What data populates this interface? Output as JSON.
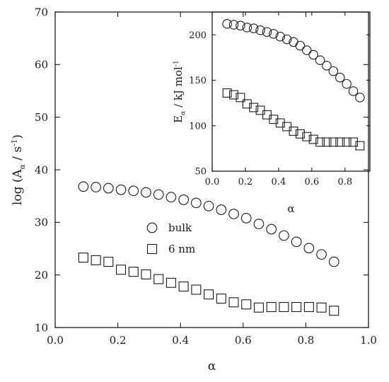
{
  "chart_data": [
    {
      "type": "scatter",
      "xlabel": "α",
      "ylabel": "log (A",
      "ylabel_sub": "α",
      "ylabel_tail": " / s",
      "ylabel_sup": "-1",
      "ylabel_close": ")",
      "xlim": [
        0.0,
        1.0
      ],
      "ylim": [
        10,
        70
      ],
      "x_ticks": [
        0.0,
        0.2,
        0.4,
        0.6,
        0.8,
        1.0
      ],
      "x_tick_labels": [
        "0.0",
        "0.2",
        "0.4",
        "0.6",
        "0.8",
        "1.0"
      ],
      "y_ticks": [
        10,
        20,
        30,
        40,
        50,
        60,
        70
      ],
      "y_tick_labels": [
        "10",
        "20",
        "30",
        "40",
        "50",
        "60",
        "70"
      ],
      "grid": false,
      "legend_position": "center",
      "series": [
        {
          "name": "bulk",
          "marker": "circle",
          "x": [
            0.09,
            0.13,
            0.17,
            0.21,
            0.25,
            0.29,
            0.33,
            0.37,
            0.41,
            0.45,
            0.49,
            0.53,
            0.57,
            0.61,
            0.65,
            0.69,
            0.73,
            0.77,
            0.81,
            0.85,
            0.89
          ],
          "y": [
            36.8,
            36.7,
            36.5,
            36.2,
            36.0,
            35.7,
            35.3,
            34.8,
            34.3,
            33.7,
            33.1,
            32.4,
            31.6,
            30.8,
            29.7,
            28.7,
            27.5,
            26.3,
            25.1,
            23.9,
            22.5
          ]
        },
        {
          "name": "6 nm",
          "marker": "square",
          "x": [
            0.09,
            0.13,
            0.17,
            0.21,
            0.25,
            0.29,
            0.33,
            0.37,
            0.41,
            0.45,
            0.49,
            0.53,
            0.57,
            0.61,
            0.65,
            0.69,
            0.73,
            0.77,
            0.81,
            0.85,
            0.89
          ],
          "y": [
            23.3,
            22.8,
            22.5,
            21.0,
            20.6,
            20.1,
            19.2,
            18.5,
            17.8,
            17.2,
            16.3,
            15.5,
            14.8,
            14.4,
            13.8,
            13.9,
            13.9,
            13.9,
            13.9,
            13.8,
            13.2
          ]
        }
      ]
    },
    {
      "type": "scatter",
      "xlabel": "α",
      "ylabel": "E",
      "ylabel_sub": "α",
      "ylabel_tail": " / kJ mol",
      "ylabel_sup": "-1",
      "xlim": [
        0.0,
        0.95
      ],
      "ylim": [
        50,
        225
      ],
      "x_ticks": [
        0.0,
        0.2,
        0.4,
        0.6,
        0.8
      ],
      "x_tick_labels": [
        "0.0",
        "0.2",
        "0.4",
        "0.6",
        "0.8"
      ],
      "y_ticks": [
        50,
        100,
        150,
        200
      ],
      "y_tick_labels": [
        "50",
        "100",
        "150",
        "200"
      ],
      "grid": false,
      "series": [
        {
          "marker": "circle",
          "x": [
            0.09,
            0.13,
            0.17,
            0.21,
            0.25,
            0.29,
            0.33,
            0.37,
            0.41,
            0.45,
            0.49,
            0.53,
            0.57,
            0.61,
            0.65,
            0.69,
            0.73,
            0.77,
            0.81,
            0.85,
            0.89
          ],
          "y": [
            212,
            211,
            210,
            208,
            207,
            205,
            203,
            201,
            198,
            195,
            192,
            188,
            183,
            178,
            172,
            166,
            160,
            153,
            146,
            138,
            131
          ]
        },
        {
          "marker": "square",
          "x": [
            0.09,
            0.13,
            0.17,
            0.21,
            0.25,
            0.29,
            0.33,
            0.37,
            0.41,
            0.45,
            0.49,
            0.53,
            0.57,
            0.61,
            0.65,
            0.69,
            0.73,
            0.77,
            0.81,
            0.85,
            0.89
          ],
          "y": [
            136,
            134,
            131,
            124,
            120,
            117,
            112,
            107,
            103,
            99,
            94,
            91,
            88,
            85,
            82,
            82,
            82,
            82,
            82,
            82,
            78
          ]
        }
      ]
    }
  ]
}
